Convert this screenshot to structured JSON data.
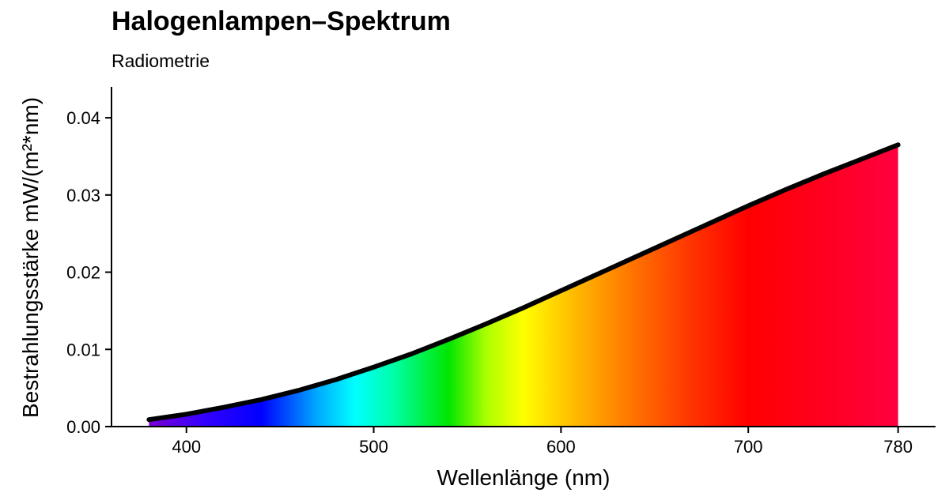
{
  "chart_data": {
    "type": "area",
    "title": "Halogenlampen–Spektrum",
    "subtitle": "Radiometrie",
    "xlabel": "Wellenlänge (nm)",
    "ylabel": "Bestrahlungsstärke  mW/(m²*nm)",
    "xlim": [
      360,
      800
    ],
    "ylim": [
      0,
      0.044
    ],
    "x_ticks": [
      400,
      500,
      600,
      700,
      780
    ],
    "y_ticks": [
      "0.00",
      "0.01",
      "0.02",
      "0.03",
      "0.04"
    ],
    "grid": false,
    "fill": "visible spectrum colour gradient",
    "series": [
      {
        "x": [
          380,
          400,
          420,
          440,
          460,
          480,
          500,
          520,
          540,
          560,
          580,
          600,
          620,
          640,
          660,
          680,
          700,
          720,
          740,
          760,
          780
        ],
        "y": [
          0.0009,
          0.0016,
          0.0025,
          0.0035,
          0.0047,
          0.0061,
          0.0077,
          0.0094,
          0.0113,
          0.0133,
          0.0154,
          0.0176,
          0.0198,
          0.022,
          0.0242,
          0.0264,
          0.0286,
          0.0307,
          0.0327,
          0.0346,
          0.0365
        ]
      }
    ]
  }
}
